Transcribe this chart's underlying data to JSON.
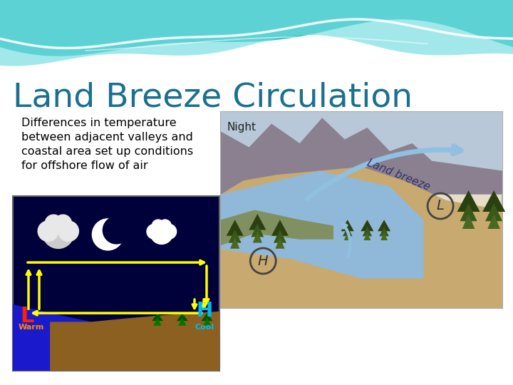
{
  "title": "Land Breeze Circulation",
  "title_color": "#1a7090",
  "title_fontsize": 34,
  "bg_color": "#ffffff",
  "header_teal1": "#38c0c0",
  "header_teal2": "#70dde0",
  "subtitle_lines": [
    "Differences in temperature",
    "between adjacent valleys and",
    "coastal area set up conditions",
    "for offshore flow of air"
  ],
  "subtitle_fontsize": 11.5,
  "subtitle_color": "#000000",
  "diagram_bg": "#00003a",
  "ocean_blue": "#1a1acc",
  "land_brown": "#8B6020",
  "arrow_yellow": "#FFFF00",
  "L_red": "#FF2200",
  "H_cyan": "#00BBEE",
  "warm_orange": "#FF8800",
  "cool_cyan": "#00CCFF",
  "tree_dark": "#005500",
  "tree_mid": "#007700",
  "night_sky": "#b0c8d8",
  "mountain_dark": "#888888",
  "mountain_brown": "#a09078",
  "sand_tan": "#c8b070",
  "water_blue": "#88aed0",
  "veg_green": "#708050",
  "tree_brown_dark": "#2d4a18",
  "land_breeze_blue": "#90c0e0",
  "land_breeze_text": "#333366"
}
